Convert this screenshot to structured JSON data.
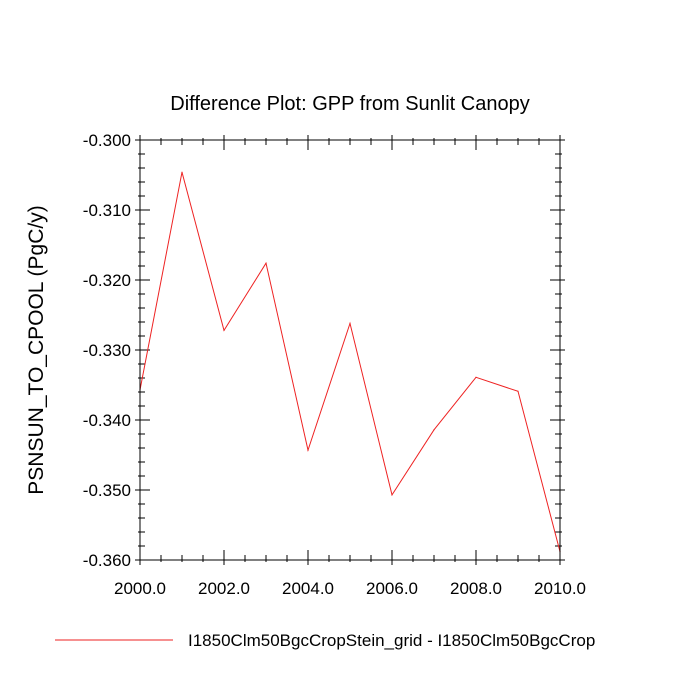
{
  "chart_data": {
    "type": "line",
    "title": "Difference Plot: GPP from Sunlit Canopy",
    "xlabel": "",
    "ylabel": "PSNSUN_TO_CPOOL  (PgC/y)",
    "xlim": [
      2000,
      2010
    ],
    "ylim": [
      -0.36,
      -0.3
    ],
    "x_ticks": [
      2000,
      2002,
      2004,
      2006,
      2008,
      2010
    ],
    "x_tick_labels": [
      "2000.0",
      "2002.0",
      "2004.0",
      "2006.0",
      "2008.0",
      "2010.0"
    ],
    "y_ticks": [
      -0.3,
      -0.31,
      -0.32,
      -0.33,
      -0.34,
      -0.35,
      -0.36
    ],
    "y_tick_labels": [
      "-0.300",
      "-0.310",
      "-0.320",
      "-0.330",
      "-0.340",
      "-0.350",
      "-0.360"
    ],
    "grid": false,
    "legend_position": "bottom",
    "series": [
      {
        "name": "I1850Clm50BgcCropStein_grid - I1850Clm50BgcCrop",
        "color": "#ee2222",
        "x": [
          2000,
          2001,
          2002,
          2003,
          2004,
          2005,
          2006,
          2007,
          2008,
          2009,
          2010
        ],
        "values": [
          -0.3357,
          -0.3046,
          -0.3272,
          -0.3176,
          -0.3443,
          -0.3262,
          -0.3507,
          -0.3414,
          -0.3339,
          -0.3359,
          -0.3588
        ]
      }
    ]
  }
}
